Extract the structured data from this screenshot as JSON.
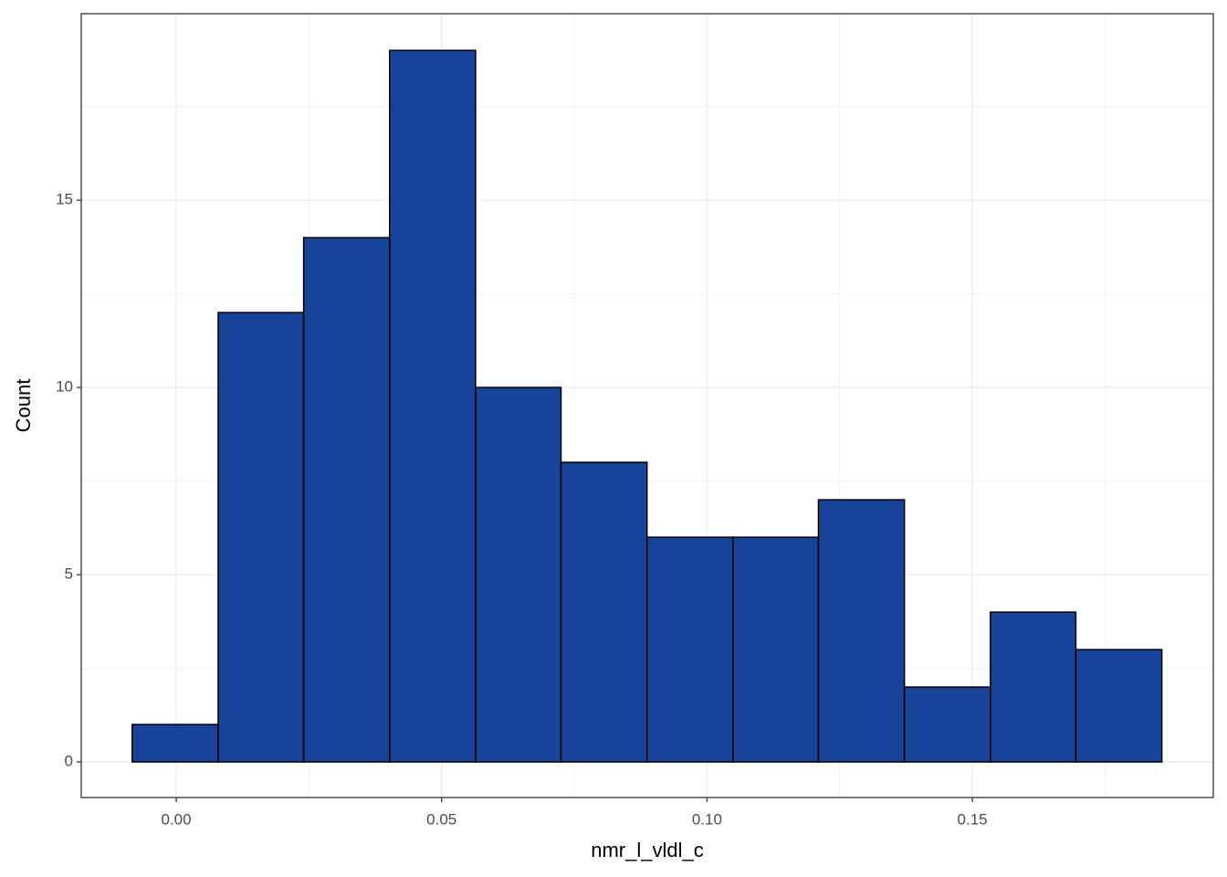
{
  "chart_data": {
    "type": "histogram",
    "x_label": "nmr_l_vldl_c",
    "y_label": "Count",
    "bins": [
      -0.0083,
      0.0079,
      0.024,
      0.0402,
      0.0564,
      0.0725,
      0.0887,
      0.1049,
      0.121,
      0.1372,
      0.1534,
      0.1695,
      0.1857
    ],
    "counts": [
      1,
      12,
      14,
      19,
      10,
      8,
      6,
      6,
      7,
      2,
      4,
      3
    ],
    "color": "#18439a",
    "xlim": [
      -0.0179,
      0.1954
    ],
    "ylim": [
      -0.95,
      19.98
    ],
    "xticks": [
      {
        "value": 0,
        "label": "0.00"
      },
      {
        "value": 0.05,
        "label": "0.05"
      },
      {
        "value": 0.1,
        "label": "0.10"
      },
      {
        "value": 0.15,
        "label": "0.15"
      }
    ],
    "yticks": [
      0,
      5,
      10,
      15
    ],
    "grid": true
  }
}
